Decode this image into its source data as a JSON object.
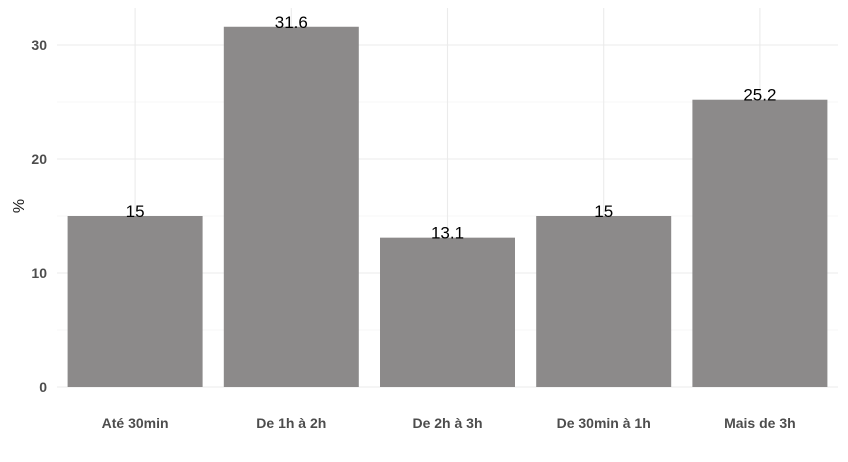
{
  "chart_data": {
    "type": "bar",
    "title": "",
    "xlabel": "",
    "ylabel": "%",
    "categories": [
      "Até 30min",
      "De 1h à 2h",
      "De 2h à 3h",
      "De 30min à 1h",
      "Mais de 3h"
    ],
    "values": [
      15,
      31.6,
      13.1,
      15,
      25.2
    ],
    "data_labels": [
      "15",
      "31.6",
      "13.1",
      "15",
      "25.2"
    ],
    "y_ticks": [
      0,
      10,
      20,
      30
    ],
    "ylim": [
      0,
      33.2
    ],
    "grid": true,
    "legend": "none",
    "bar_color": "#8c8a8a"
  }
}
